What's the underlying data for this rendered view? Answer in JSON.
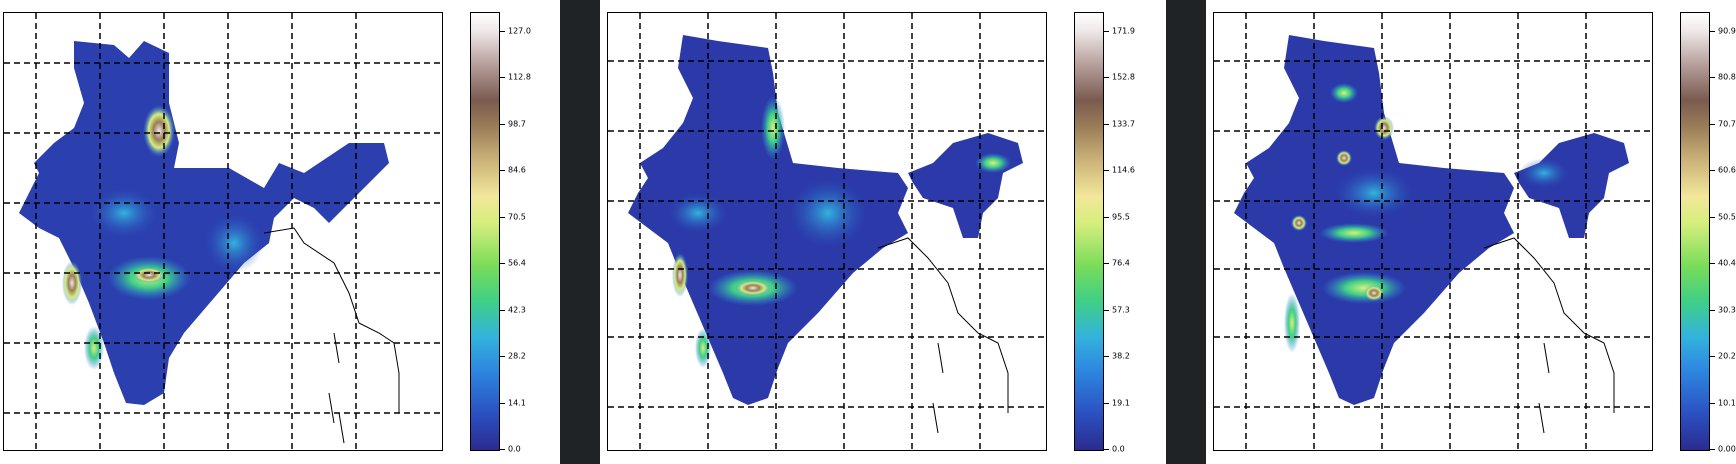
{
  "panels": [
    {
      "colorbar": {
        "ticks": [
          "0.0",
          "14.1",
          "28.2",
          "42.3",
          "56.4",
          "70.5",
          "84.6",
          "98.7",
          "112.8",
          "127.0"
        ]
      }
    },
    {
      "colorbar": {
        "ticks": [
          "0.0",
          "19.1",
          "38.2",
          "57.3",
          "76.4",
          "95.5",
          "114.6",
          "133.7",
          "152.8",
          "171.9"
        ]
      }
    },
    {
      "colorbar": {
        "ticks": [
          "0.00",
          "10.10",
          "20.21",
          "30.31",
          "40.42",
          "50.52",
          "60.63",
          "70.73",
          "80.83",
          "90.94"
        ]
      }
    }
  ],
  "colors": {
    "low": "#2b2b8f",
    "mid_low": "#2d86e0",
    "mid": "#3fcf86",
    "mid_high": "#d7ee7e",
    "high": "#9a7d58",
    "max": "#efe9ea",
    "separator": "#1f2326",
    "grid": "#000000"
  }
}
